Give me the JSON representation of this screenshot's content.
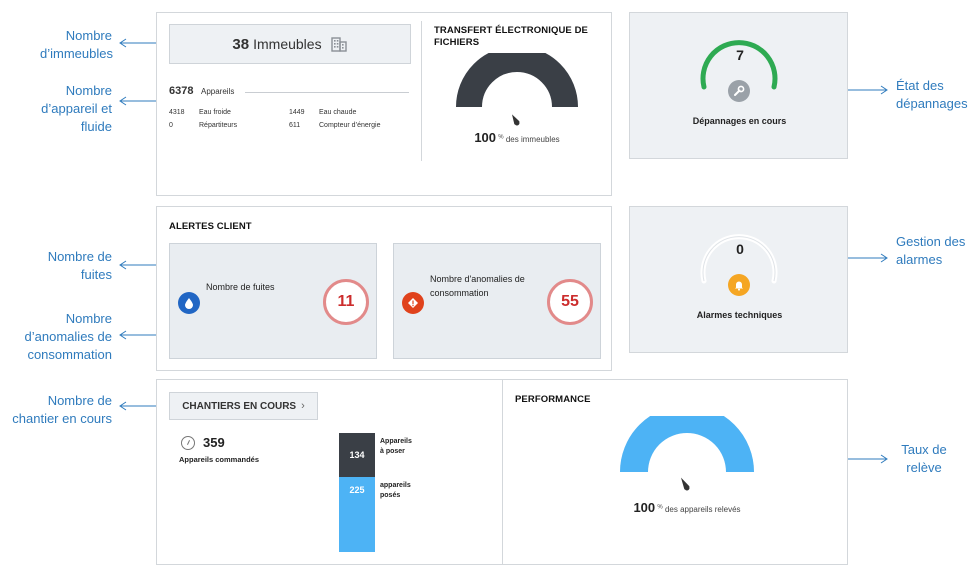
{
  "callouts": {
    "buildings": "Nombre d’immeubles",
    "devices": "Nombre d’appareil et fluide",
    "leaks": "Nombre de fuites",
    "anomalies": "Nombre d’anomalies de consommation",
    "sites": "Nombre de chantier en cours",
    "repairs": "État des dépannages",
    "alarms": "Gestion des alarmes",
    "reading_rate": "Taux de relève"
  },
  "buildings": {
    "count": "38",
    "label": "Immeubles"
  },
  "devices": {
    "total": "6378",
    "label": "Appareils",
    "rows": [
      {
        "v1": "4318",
        "l1": "Eau froide",
        "v2": "1449",
        "l2": "Eau chaude"
      },
      {
        "v1": "0",
        "l1": "Répartiteurs",
        "v2": "611",
        "l2": "Compteur d’énergie"
      }
    ]
  },
  "transfer": {
    "title_line1": "TRANSFERT ÉLECTRONIQUE DE",
    "title_line2": "FICHIERS",
    "value": "100",
    "unit": "%",
    "caption": "des immeubles",
    "fraction": 1.0,
    "color": "#3a3f46"
  },
  "repairs": {
    "value": "7",
    "caption": "Dépannages en cours",
    "color": "#2eaa52"
  },
  "alerts": {
    "title": "ALERTES CLIENT",
    "leaks_label": "Nombre de fuites",
    "leaks_value": "11",
    "anomalies_label": "Nombre d'anomalies de consommation",
    "anomalies_value": "55"
  },
  "alarms": {
    "value": "0",
    "caption": "Alarmes techniques",
    "color": "#f5a623"
  },
  "sites": {
    "button_label": "CHANTIERS EN COURS",
    "ordered_value": "359",
    "ordered_label": "Appareils commandés",
    "to_install_value": "134",
    "to_install_label_1": "Appareils",
    "to_install_label_2": "à poser",
    "installed_value": "225",
    "installed_label_1": "appareils",
    "installed_label_2": "posés",
    "dark_color": "#3a3f46",
    "light_color": "#4db3f5"
  },
  "performance": {
    "title": "PERFORMANCE",
    "value": "100",
    "unit": "%",
    "caption": "des appareils relevés",
    "fraction": 1.0,
    "color": "#4db3f5"
  }
}
